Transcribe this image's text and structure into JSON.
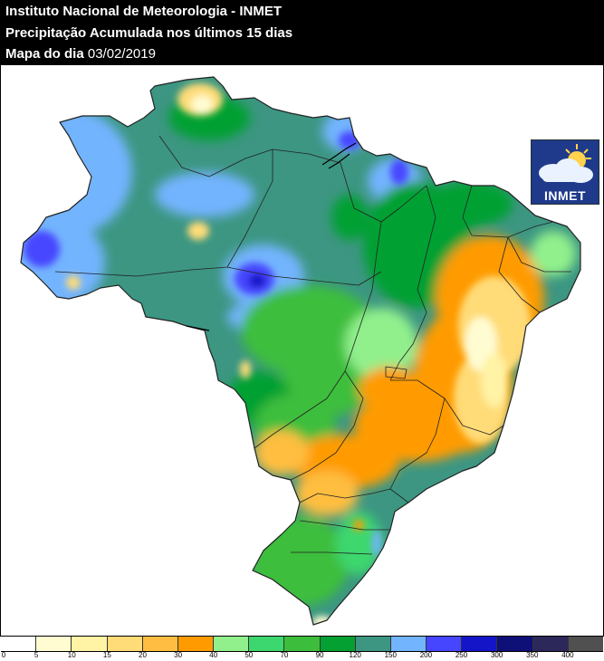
{
  "header": {
    "line1": "Instituto Nacional de Meteorologia - INMET",
    "line2": "Precipitação Acumulada nos últimos 15 dias",
    "line3_label": "Mapa do dia",
    "line3_date": "03/02/2019"
  },
  "logo": {
    "text": "INMET",
    "icon": "sun-cloud-icon"
  },
  "legend": {
    "ticks": [
      "0",
      "5",
      "10",
      "15",
      "20",
      "30",
      "40",
      "50",
      "70",
      "90",
      "120",
      "150",
      "200",
      "250",
      "300",
      "350",
      "400"
    ],
    "colors": [
      "#ffffff",
      "#fffcd2",
      "#fff3a5",
      "#ffdc78",
      "#ffbe41",
      "#ff9b00",
      "#91f08c",
      "#3cd76e",
      "#3cbe3c",
      "#05a032",
      "#3c9682",
      "#73b4ff",
      "#4646ff",
      "#1414c8",
      "#0f0f78",
      "#2d285a",
      "#505050"
    ]
  }
}
